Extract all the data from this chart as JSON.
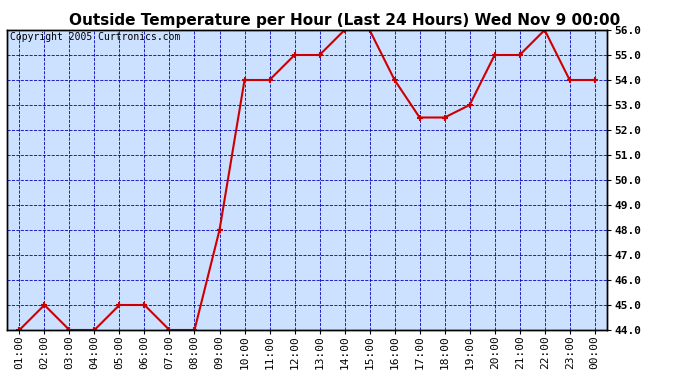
{
  "title": "Outside Temperature per Hour (Last 24 Hours) Wed Nov 9 00:00",
  "copyright": "Copyright 2005 Curtronics.com",
  "x_labels": [
    "01:00",
    "02:00",
    "03:00",
    "04:00",
    "05:00",
    "06:00",
    "07:00",
    "08:00",
    "09:00",
    "10:00",
    "11:00",
    "12:00",
    "13:00",
    "14:00",
    "15:00",
    "16:00",
    "17:00",
    "18:00",
    "19:00",
    "20:00",
    "21:00",
    "22:00",
    "23:00",
    "00:00"
  ],
  "y_values": [
    44.0,
    45.0,
    44.0,
    44.0,
    45.0,
    45.0,
    44.0,
    44.0,
    48.0,
    54.0,
    54.0,
    55.0,
    55.0,
    56.0,
    56.0,
    54.0,
    52.5,
    52.5,
    53.0,
    55.0,
    55.0,
    56.0,
    54.0,
    54.0
  ],
  "ylim": [
    44.0,
    56.0
  ],
  "ytick_step": 1.0,
  "line_color": "#cc0000",
  "marker": "+",
  "marker_color": "#cc0000",
  "marker_size": 5,
  "marker_linewidth": 1.5,
  "line_width": 1.5,
  "grid_color": "#0000bb",
  "grid_linestyle": "--",
  "grid_linewidth": 0.6,
  "background_color": "#cce0ff",
  "plot_bg_color": "#cce0ff",
  "outer_bg_color": "#ffffff",
  "title_fontsize": 11,
  "copyright_fontsize": 7,
  "tick_fontsize": 8,
  "tick_font": "monospace"
}
